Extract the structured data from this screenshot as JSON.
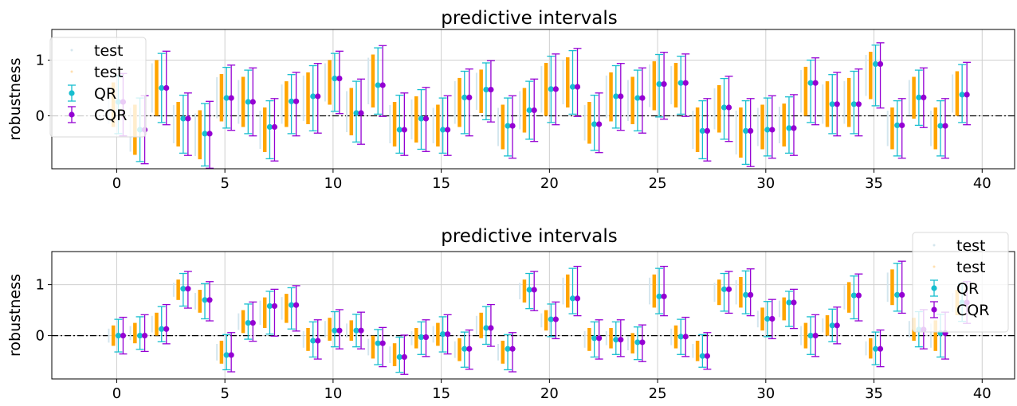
{
  "chart_data": [
    {
      "type": "errorbar",
      "title": "predictive intervals",
      "ylabel": "robustness",
      "xlim": [
        -3,
        41.5
      ],
      "ylim": [
        -0.95,
        1.55
      ],
      "xticks": [
        0,
        5,
        10,
        15,
        20,
        25,
        30,
        35,
        40
      ],
      "yticks": [
        -1,
        0,
        1
      ],
      "grid": true,
      "legend": {
        "placement": "top-left",
        "entries": [
          "test",
          "test",
          "QR",
          "CQR"
        ]
      },
      "colors": {
        "orange": "#ffa500",
        "qr": "#17becf",
        "cqr": "#9400d3",
        "test_light": "#d4e6ee",
        "test_orange": "#ffe0b0"
      },
      "baseline_y": 0,
      "points": [
        {
          "x": 0,
          "lo": -0.2,
          "hi": 0.6,
          "qr": 0.25,
          "cqr": 0.25
        },
        {
          "x": 1,
          "lo": -0.7,
          "hi": 0.2,
          "qr": -0.25,
          "cqr": -0.25
        },
        {
          "x": 2,
          "lo": 0.0,
          "hi": 1.0,
          "qr": 0.5,
          "cqr": 0.5
        },
        {
          "x": 3,
          "lo": -0.55,
          "hi": 0.25,
          "qr": -0.05,
          "cqr": -0.05
        },
        {
          "x": 4,
          "lo": -0.78,
          "hi": 0.1,
          "qr": -0.32,
          "cqr": -0.32
        },
        {
          "x": 5,
          "lo": -0.1,
          "hi": 0.75,
          "qr": 0.32,
          "cqr": 0.32
        },
        {
          "x": 6,
          "lo": -0.2,
          "hi": 0.7,
          "qr": 0.25,
          "cqr": 0.25
        },
        {
          "x": 7,
          "lo": -0.65,
          "hi": 0.15,
          "qr": -0.2,
          "cqr": -0.2
        },
        {
          "x": 8,
          "lo": -0.2,
          "hi": 0.62,
          "qr": 0.26,
          "cqr": 0.26
        },
        {
          "x": 9,
          "lo": -0.15,
          "hi": 0.78,
          "qr": 0.35,
          "cqr": 0.35
        },
        {
          "x": 10,
          "lo": 0.2,
          "hi": 1.0,
          "qr": 0.67,
          "cqr": 0.67
        },
        {
          "x": 11,
          "lo": -0.35,
          "hi": 0.5,
          "qr": 0.05,
          "cqr": 0.05
        },
        {
          "x": 12,
          "lo": 0.15,
          "hi": 1.1,
          "qr": 0.55,
          "cqr": 0.55
        },
        {
          "x": 13,
          "lo": -0.55,
          "hi": 0.25,
          "qr": -0.25,
          "cqr": -0.25
        },
        {
          "x": 14,
          "lo": -0.48,
          "hi": 0.35,
          "qr": -0.05,
          "cqr": -0.05
        },
        {
          "x": 15,
          "lo": -0.55,
          "hi": 0.2,
          "qr": -0.25,
          "cqr": -0.25
        },
        {
          "x": 16,
          "lo": -0.2,
          "hi": 0.68,
          "qr": 0.33,
          "cqr": 0.33
        },
        {
          "x": 17,
          "lo": 0.05,
          "hi": 0.83,
          "qr": 0.47,
          "cqr": 0.47
        },
        {
          "x": 18,
          "lo": -0.6,
          "hi": 0.2,
          "qr": -0.18,
          "cqr": -0.18
        },
        {
          "x": 19,
          "lo": -0.3,
          "hi": 0.5,
          "qr": 0.1,
          "cqr": 0.1
        },
        {
          "x": 20,
          "lo": 0.0,
          "hi": 0.95,
          "qr": 0.48,
          "cqr": 0.48
        },
        {
          "x": 21,
          "lo": 0.15,
          "hi": 1.05,
          "qr": 0.52,
          "cqr": 0.52
        },
        {
          "x": 22,
          "lo": -0.5,
          "hi": 0.25,
          "qr": -0.15,
          "cqr": -0.15
        },
        {
          "x": 23,
          "lo": -0.1,
          "hi": 0.78,
          "qr": 0.35,
          "cqr": 0.35
        },
        {
          "x": 24,
          "lo": -0.15,
          "hi": 0.7,
          "qr": 0.32,
          "cqr": 0.32
        },
        {
          "x": 25,
          "lo": 0.1,
          "hi": 0.98,
          "qr": 0.57,
          "cqr": 0.57
        },
        {
          "x": 26,
          "lo": 0.15,
          "hi": 0.95,
          "qr": 0.59,
          "cqr": 0.59
        },
        {
          "x": 27,
          "lo": -0.65,
          "hi": 0.15,
          "qr": -0.27,
          "cqr": -0.27
        },
        {
          "x": 28,
          "lo": -0.3,
          "hi": 0.55,
          "qr": 0.15,
          "cqr": 0.15
        },
        {
          "x": 29,
          "lo": -0.75,
          "hi": 0.15,
          "qr": -0.27,
          "cqr": -0.27
        },
        {
          "x": 30,
          "lo": -0.6,
          "hi": 0.2,
          "qr": -0.25,
          "cqr": -0.25
        },
        {
          "x": 31,
          "lo": -0.55,
          "hi": 0.22,
          "qr": -0.22,
          "cqr": -0.22
        },
        {
          "x": 32,
          "lo": 0.0,
          "hi": 0.88,
          "qr": 0.59,
          "cqr": 0.59
        },
        {
          "x": 33,
          "lo": -0.2,
          "hi": 0.62,
          "qr": 0.21,
          "cqr": 0.21
        },
        {
          "x": 34,
          "lo": -0.2,
          "hi": 0.68,
          "qr": 0.21,
          "cqr": 0.21
        },
        {
          "x": 35,
          "lo": 0.3,
          "hi": 1.15,
          "qr": 0.93,
          "cqr": 0.93
        },
        {
          "x": 36,
          "lo": -0.6,
          "hi": 0.15,
          "qr": -0.17,
          "cqr": -0.17
        },
        {
          "x": 37,
          "lo": -0.05,
          "hi": 0.7,
          "qr": 0.33,
          "cqr": 0.33
        },
        {
          "x": 38,
          "lo": -0.6,
          "hi": 0.15,
          "qr": -0.18,
          "cqr": -0.18
        },
        {
          "x": 39,
          "lo": 0.0,
          "hi": 0.8,
          "qr": 0.38,
          "cqr": 0.38
        }
      ]
    },
    {
      "type": "errorbar",
      "title": "predictive intervals",
      "ylabel": "robustness",
      "xlim": [
        -3,
        41.5
      ],
      "ylim": [
        -0.85,
        1.65
      ],
      "xticks": [
        0,
        5,
        10,
        15,
        20,
        25,
        30,
        35,
        40
      ],
      "yticks": [
        0,
        1
      ],
      "grid": true,
      "legend": {
        "placement": "right",
        "entries": [
          "test",
          "test",
          "QR",
          "CQR"
        ]
      },
      "colors": {
        "orange": "#ffa500",
        "qr": "#17becf",
        "cqr": "#9400d3",
        "test_light": "#d4e6ee",
        "test_orange": "#ffe0b0"
      },
      "baseline_y": 0,
      "points": [
        {
          "x": 0,
          "lo": -0.2,
          "hi": 0.2,
          "qr": 0.0,
          "cqr": 0.0
        },
        {
          "x": 1,
          "lo": -0.15,
          "hi": 0.25,
          "qr": 0.0,
          "cqr": 0.0
        },
        {
          "x": 2,
          "lo": 0.0,
          "hi": 0.45,
          "qr": 0.13,
          "cqr": 0.13
        },
        {
          "x": 3,
          "lo": 0.7,
          "hi": 1.1,
          "qr": 0.92,
          "cqr": 0.92
        },
        {
          "x": 4,
          "lo": 0.45,
          "hi": 0.9,
          "qr": 0.7,
          "cqr": 0.7
        },
        {
          "x": 5,
          "lo": -0.55,
          "hi": -0.1,
          "qr": -0.38,
          "cqr": -0.38
        },
        {
          "x": 6,
          "lo": 0.05,
          "hi": 0.5,
          "qr": 0.25,
          "cqr": 0.25
        },
        {
          "x": 7,
          "lo": 0.15,
          "hi": 0.75,
          "qr": 0.58,
          "cqr": 0.58
        },
        {
          "x": 8,
          "lo": 0.25,
          "hi": 0.82,
          "qr": 0.6,
          "cqr": 0.6
        },
        {
          "x": 9,
          "lo": -0.3,
          "hi": 0.15,
          "qr": -0.1,
          "cqr": -0.1
        },
        {
          "x": 10,
          "lo": -0.1,
          "hi": 0.35,
          "qr": 0.1,
          "cqr": 0.1
        },
        {
          "x": 11,
          "lo": -0.1,
          "hi": 0.3,
          "qr": 0.1,
          "cqr": 0.1
        },
        {
          "x": 12,
          "lo": -0.45,
          "hi": 0.0,
          "qr": -0.15,
          "cqr": -0.15
        },
        {
          "x": 13,
          "lo": -0.6,
          "hi": -0.15,
          "qr": -0.42,
          "cqr": -0.42
        },
        {
          "x": 14,
          "lo": -0.25,
          "hi": 0.15,
          "qr": -0.03,
          "cqr": -0.03
        },
        {
          "x": 15,
          "lo": -0.2,
          "hi": 0.25,
          "qr": 0.03,
          "cqr": 0.03
        },
        {
          "x": 16,
          "lo": -0.5,
          "hi": -0.05,
          "qr": -0.26,
          "cqr": -0.26
        },
        {
          "x": 17,
          "lo": -0.05,
          "hi": 0.45,
          "qr": 0.15,
          "cqr": 0.15
        },
        {
          "x": 18,
          "lo": -0.55,
          "hi": -0.1,
          "qr": -0.26,
          "cqr": -0.26
        },
        {
          "x": 19,
          "lo": 0.65,
          "hi": 1.1,
          "qr": 0.9,
          "cqr": 0.9
        },
        {
          "x": 20,
          "lo": 0.1,
          "hi": 0.5,
          "qr": 0.32,
          "cqr": 0.32
        },
        {
          "x": 21,
          "lo": 0.55,
          "hi": 1.2,
          "qr": 0.73,
          "cqr": 0.73
        },
        {
          "x": 22,
          "lo": -0.3,
          "hi": 0.15,
          "qr": -0.05,
          "cqr": -0.05
        },
        {
          "x": 23,
          "lo": -0.25,
          "hi": 0.15,
          "qr": -0.08,
          "cqr": -0.08
        },
        {
          "x": 24,
          "lo": -0.35,
          "hi": 0.05,
          "qr": -0.13,
          "cqr": -0.13
        },
        {
          "x": 25,
          "lo": 0.55,
          "hi": 1.2,
          "qr": 0.77,
          "cqr": 0.77
        },
        {
          "x": 26,
          "lo": -0.25,
          "hi": 0.2,
          "qr": -0.02,
          "cqr": -0.02
        },
        {
          "x": 27,
          "lo": -0.5,
          "hi": -0.1,
          "qr": -0.4,
          "cqr": -0.4
        },
        {
          "x": 28,
          "lo": 0.6,
          "hi": 1.1,
          "qr": 0.91,
          "cqr": 0.91
        },
        {
          "x": 29,
          "lo": 0.55,
          "hi": 1.15,
          "qr": 0.8,
          "cqr": 0.8
        },
        {
          "x": 30,
          "lo": 0.1,
          "hi": 0.55,
          "qr": 0.33,
          "cqr": 0.33
        },
        {
          "x": 31,
          "lo": 0.3,
          "hi": 0.75,
          "qr": 0.65,
          "cqr": 0.65
        },
        {
          "x": 32,
          "lo": -0.25,
          "hi": 0.25,
          "qr": 0.0,
          "cqr": 0.0
        },
        {
          "x": 33,
          "lo": 0.0,
          "hi": 0.4,
          "qr": 0.2,
          "cqr": 0.2
        },
        {
          "x": 34,
          "lo": 0.45,
          "hi": 1.05,
          "qr": 0.79,
          "cqr": 0.79
        },
        {
          "x": 35,
          "lo": -0.45,
          "hi": -0.05,
          "qr": -0.26,
          "cqr": -0.26
        },
        {
          "x": 36,
          "lo": 0.6,
          "hi": 1.3,
          "qr": 0.8,
          "cqr": 0.8
        },
        {
          "x": 37,
          "lo": -0.1,
          "hi": 0.35,
          "qr": 0.12,
          "cqr": 0.12
        },
        {
          "x": 38,
          "lo": -0.3,
          "hi": 0.3,
          "qr": 0.05,
          "cqr": 0.05
        },
        {
          "x": 39,
          "lo": 0.4,
          "hi": 0.9,
          "qr": 0.65,
          "cqr": 0.65
        }
      ]
    }
  ]
}
